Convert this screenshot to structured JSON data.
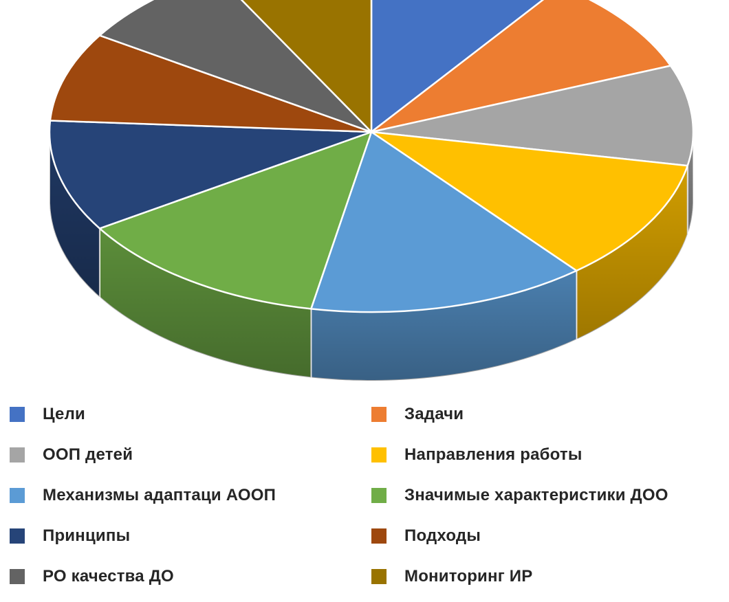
{
  "chart_data": {
    "type": "pie",
    "style": "3d",
    "legend_position": "bottom",
    "slices": [
      {
        "label": "Цели",
        "value": 10,
        "color": "#4472C4"
      },
      {
        "label": "Задачи",
        "value": 9,
        "color": "#ED7D31"
      },
      {
        "label": "ООП детей",
        "value": 9,
        "color": "#A5A5A5"
      },
      {
        "label": "Направления работы",
        "value": 11,
        "color": "#FFC000"
      },
      {
        "label": "Механизмы адаптаци АООП",
        "value": 14,
        "color": "#5B9BD5"
      },
      {
        "label": "Значимые характеристики ДОО",
        "value": 13,
        "color": "#70AD47"
      },
      {
        "label": "Принципы",
        "value": 10,
        "color": "#264478"
      },
      {
        "label": "Подходы",
        "value": 8,
        "color": "#9E480E"
      },
      {
        "label": "РО качества ДО",
        "value": 8,
        "color": "#636363"
      },
      {
        "label": "Мониторинг ИР",
        "value": 8,
        "color": "#997300"
      }
    ]
  }
}
